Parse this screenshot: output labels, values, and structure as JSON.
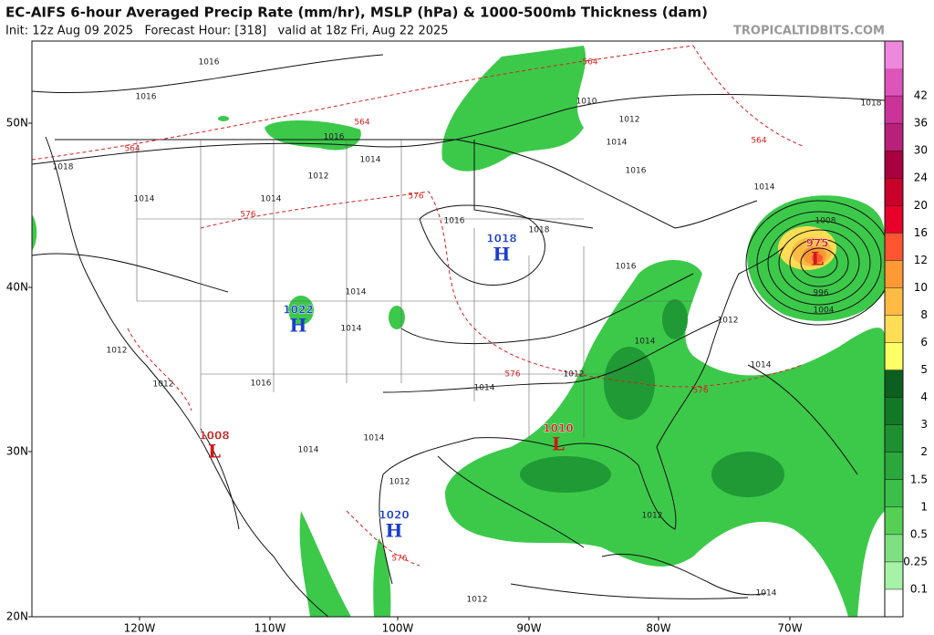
{
  "header": {
    "title": "EC-AIFS 6-hour Averaged Precip Rate (mm/hr), MSLP (hPa) & 1000-500mb Thickness (dam)",
    "subtitle": "Init: 12z Aug 09 2025   Forecast Hour: [318]   valid at 18z Fri, Aug 22 2025",
    "credit": "TROPICALTIDBITS.COM"
  },
  "map": {
    "lat_labels": [
      "50N",
      "40N",
      "30N",
      "20N"
    ],
    "lon_labels": [
      "120W",
      "110W",
      "100W",
      "90W",
      "80W",
      "70W"
    ],
    "centers": [
      {
        "letter": "H",
        "pressure": "1018",
        "color": "#1a3fcc"
      },
      {
        "letter": "H",
        "pressure": "1022",
        "color": "#1a3fcc"
      },
      {
        "letter": "H",
        "pressure": "1020",
        "color": "#1a3fcc"
      },
      {
        "letter": "L",
        "pressure": "1008",
        "color": "#cc1a1a"
      },
      {
        "letter": "L",
        "pressure": "1010",
        "color": "#cc1a1a"
      },
      {
        "letter": "L",
        "pressure": "975",
        "color": "#cc1a1a"
      }
    ],
    "isobar_labels": [
      "1016",
      "1016",
      "1018",
      "1016",
      "1014",
      "1012",
      "1014",
      "1014",
      "1010",
      "1012",
      "1014",
      "1016",
      "1016",
      "1018",
      "1016",
      "1014",
      "1014",
      "1012",
      "1012",
      "1016",
      "1014",
      "1012",
      "1014",
      "1012",
      "1014",
      "1004",
      "996",
      "1014",
      "1014",
      "1012",
      "1012",
      "1012",
      "1014",
      "1018",
      "1014",
      "1008"
    ],
    "thickness_labels": [
      "564",
      "564",
      "564",
      "564",
      "576",
      "576",
      "576",
      "576",
      "576"
    ]
  },
  "colorbar": {
    "levels": [
      0.1,
      0.25,
      0.5,
      1,
      1.5,
      2,
      3,
      4,
      5,
      6,
      8,
      10,
      12,
      16,
      20,
      24,
      30,
      36,
      42
    ],
    "colors": [
      "#ffffff",
      "#a6f2a6",
      "#7ee07e",
      "#55d055",
      "#3cbf4a",
      "#2aa83c",
      "#1f9030",
      "#137826",
      "#0b6020",
      "#ffff66",
      "#ffdd55",
      "#ffbb44",
      "#ff9933",
      "#ff5533",
      "#e8002a",
      "#c8002a",
      "#a80040",
      "#b8207a",
      "#cc3399",
      "#dd55bb",
      "#ee88dd"
    ]
  }
}
